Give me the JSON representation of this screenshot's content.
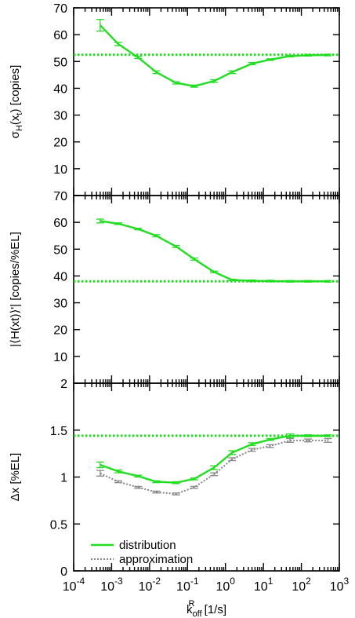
{
  "colors": {
    "distribution": "#22dd22",
    "approximation": "#888888",
    "axis": "#000000"
  },
  "chart_data": [
    {
      "type": "line",
      "panel": "top",
      "xscale": "log",
      "xlim": [
        0.0001,
        1000
      ],
      "ylim": [
        0,
        70
      ],
      "yticks": [
        0,
        10,
        20,
        30,
        40,
        50,
        60,
        70
      ],
      "ytick_labels": [
        "10",
        "20",
        "30",
        "40",
        "50",
        "60",
        "70"
      ],
      "ylabel_parts": [
        "σ",
        "H",
        "(x",
        "t",
        ") [copies]"
      ],
      "reference_line": 52.5,
      "series": [
        {
          "key": "distribution",
          "x": [
            0.0005,
            0.0015,
            0.005,
            0.015,
            0.05,
            0.15,
            0.5,
            1.5,
            5,
            15,
            50,
            150,
            500
          ],
          "y": [
            63.5,
            56.5,
            51.5,
            46,
            42,
            40.8,
            42.7,
            46,
            49.2,
            50.7,
            52,
            52.3,
            52.4
          ],
          "err": [
            2.2,
            0.6,
            0.4,
            0.5,
            0.4,
            0.4,
            0.5,
            0.5,
            0.4,
            0.3,
            0.3,
            0.3,
            0.3
          ]
        }
      ]
    },
    {
      "type": "line",
      "panel": "middle",
      "xscale": "log",
      "xlim": [
        0.0001,
        1000
      ],
      "ylim": [
        0,
        70
      ],
      "yticks": [
        0,
        10,
        20,
        30,
        40,
        50,
        60,
        70
      ],
      "ytick_labels": [
        "10",
        "20",
        "30",
        "40",
        "50",
        "60",
        "70"
      ],
      "ylabel": "|⟨H(xt)⟩'| [copies/%EL]",
      "reference_line": 38,
      "series": [
        {
          "key": "distribution",
          "x": [
            0.0005,
            0.0015,
            0.005,
            0.015,
            0.05,
            0.15,
            0.5,
            1.5,
            5,
            15,
            50,
            150,
            500
          ],
          "y": [
            60.5,
            59.5,
            57.5,
            55,
            51,
            46.3,
            41.5,
            38.5,
            38.2,
            38.1,
            38,
            38,
            38
          ],
          "err": [
            0.7,
            0.3,
            0.3,
            0.4,
            0.4,
            0.4,
            0.3,
            0.3,
            0.3,
            0.3,
            0.3,
            0.3,
            0.3
          ]
        }
      ]
    },
    {
      "type": "line",
      "panel": "bottom",
      "xscale": "log",
      "xlim": [
        0.0001,
        1000
      ],
      "ylim": [
        0,
        2
      ],
      "yticks": [
        0,
        0.5,
        1,
        1.5,
        2
      ],
      "ytick_labels": [
        "0",
        "0.5",
        "1",
        "1.5",
        "2"
      ],
      "ylabel": "Δx [%EL]",
      "reference_line": 1.44,
      "xticks": [
        0.0001,
        0.001,
        0.01,
        0.1,
        1,
        10,
        100,
        1000
      ],
      "xtick_exponents": [
        "-4",
        "-3",
        "-2",
        "-1",
        "0",
        "1",
        "2",
        "3"
      ],
      "xtick_base": "10",
      "xlabel_parts": [
        "k",
        "off",
        "R",
        " [1/s]"
      ],
      "legend": [
        {
          "key": "distribution",
          "label": "distribution"
        },
        {
          "key": "approximation",
          "label": "approximation"
        }
      ],
      "legend_position": "bottom-left",
      "series": [
        {
          "key": "distribution",
          "x": [
            0.0005,
            0.0015,
            0.005,
            0.015,
            0.05,
            0.15,
            0.5,
            1.5,
            5,
            15,
            50,
            150,
            500
          ],
          "y": [
            1.13,
            1.06,
            1.01,
            0.95,
            0.94,
            0.98,
            1.1,
            1.26,
            1.35,
            1.4,
            1.44,
            1.44,
            1.44
          ],
          "err": [
            0.03,
            0.015,
            0.01,
            0.01,
            0.01,
            0.01,
            0.02,
            0.02,
            0.015,
            0.01,
            0.02,
            0.01,
            0.01
          ]
        },
        {
          "key": "approximation",
          "x": [
            0.0005,
            0.0015,
            0.005,
            0.015,
            0.05,
            0.15,
            0.5,
            1.5,
            5,
            15,
            50,
            150,
            500
          ],
          "y": [
            1.04,
            0.95,
            0.89,
            0.84,
            0.82,
            0.89,
            1.03,
            1.19,
            1.29,
            1.33,
            1.39,
            1.39,
            1.39
          ],
          "err": [
            0.03,
            0.01,
            0.01,
            0.01,
            0.01,
            0.01,
            0.015,
            0.015,
            0.015,
            0.015,
            0.02,
            0.015,
            0.02
          ]
        }
      ]
    }
  ]
}
